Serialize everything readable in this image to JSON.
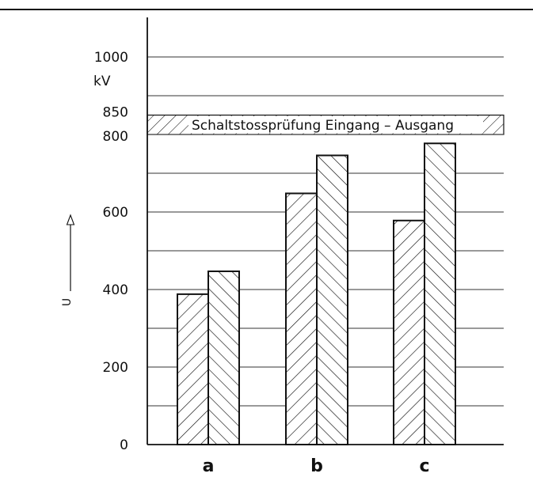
{
  "chart_data": {
    "type": "bar",
    "categories": [
      "a",
      "b",
      "c"
    ],
    "series": [
      {
        "values": [
          388,
          648,
          578
        ]
      },
      {
        "values": [
          447,
          746,
          777
        ]
      }
    ],
    "ylabel": "U",
    "unit": "kV",
    "ylim": [
      0,
      1000
    ],
    "yticks": [
      0,
      200,
      400,
      600,
      800,
      850,
      1000
    ],
    "grid": true,
    "band": {
      "from": 800,
      "to": 850,
      "label": "Schaltstossprüfung  Eingang – Ausgang"
    }
  }
}
